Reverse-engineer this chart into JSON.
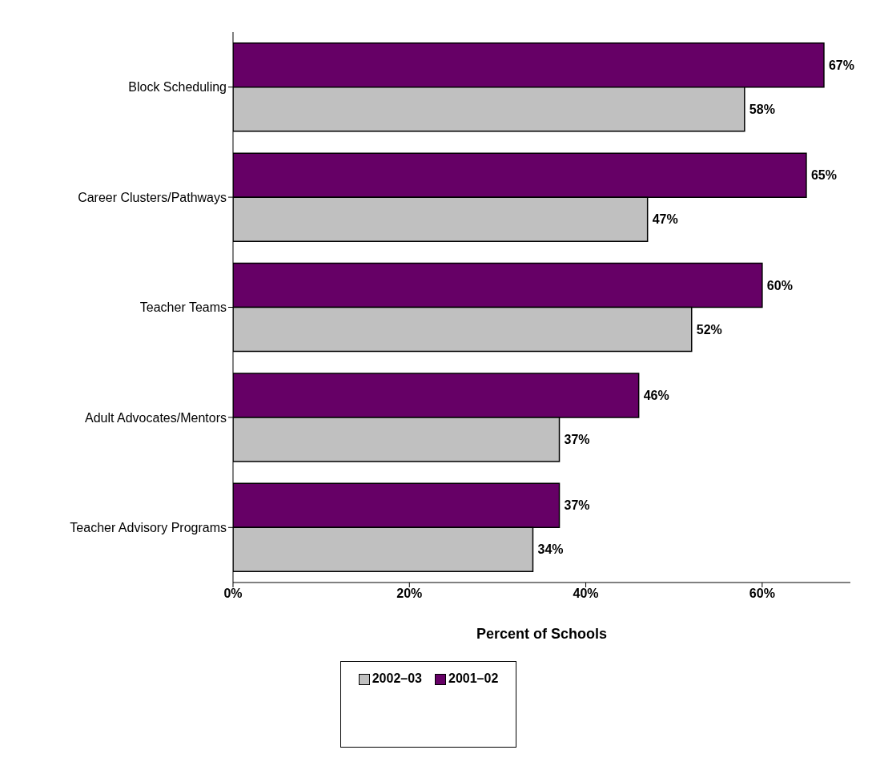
{
  "chart_data": {
    "type": "bar",
    "orientation": "horizontal",
    "categories": [
      "Block Scheduling",
      "Career Clusters/Pathways",
      "Teacher Teams",
      "Adult Advocates/Mentors",
      "Teacher Advisory Programs"
    ],
    "series": [
      {
        "name": "2002–03",
        "color": "#c0c0c0",
        "values": [
          58,
          47,
          52,
          37,
          34
        ],
        "value_labels": [
          "58%",
          "47%",
          "52%",
          "37%",
          "34%"
        ]
      },
      {
        "name": "2001–02",
        "color": "#660066",
        "values": [
          67,
          65,
          60,
          46,
          37
        ],
        "value_labels": [
          "67%",
          "65%",
          "60%",
          "46%",
          "37%"
        ]
      }
    ],
    "xlabel": "Percent of Schools",
    "xlim": [
      0,
      70
    ],
    "xticks": [
      {
        "value": 0,
        "label": "0%"
      },
      {
        "value": 20,
        "label": "20%"
      },
      {
        "value": 40,
        "label": "40%"
      },
      {
        "value": 60,
        "label": "60%"
      }
    ],
    "grid": false,
    "legend": "bottom"
  }
}
